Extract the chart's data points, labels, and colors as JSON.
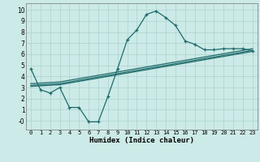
{
  "xlabel": "Humidex (Indice chaleur)",
  "xlim": [
    -0.5,
    23.5
  ],
  "ylim": [
    -0.8,
    10.6
  ],
  "xticks": [
    0,
    1,
    2,
    3,
    4,
    5,
    6,
    7,
    8,
    9,
    10,
    11,
    12,
    13,
    14,
    15,
    16,
    17,
    18,
    19,
    20,
    21,
    22,
    23
  ],
  "yticks": [
    0,
    1,
    2,
    3,
    4,
    5,
    6,
    7,
    8,
    9,
    10
  ],
  "ytick_labels": [
    "-0",
    "1",
    "2",
    "3",
    "4",
    "5",
    "6",
    "7",
    "8",
    "9",
    "10"
  ],
  "background_color": "#cceae7",
  "grid_color": "#aad4d0",
  "line_color": "#1e6b6b",
  "line1_x": [
    0,
    1,
    2,
    3,
    4,
    5,
    6,
    7,
    8,
    9,
    10,
    11,
    12,
    13,
    14,
    15,
    16,
    17,
    18,
    19,
    20,
    21,
    22,
    23
  ],
  "line1_y": [
    4.7,
    2.8,
    2.5,
    3.0,
    1.2,
    1.2,
    -0.1,
    -0.1,
    2.2,
    4.7,
    7.3,
    8.2,
    9.6,
    9.9,
    9.3,
    8.6,
    7.2,
    6.9,
    6.4,
    6.4,
    6.5,
    6.5,
    6.5,
    6.3
  ],
  "line2_x": [
    0,
    2,
    3,
    23
  ],
  "line2_y": [
    3.1,
    3.2,
    3.25,
    6.25
  ],
  "line3_x": [
    0,
    2,
    3,
    23
  ],
  "line3_y": [
    3.2,
    3.3,
    3.35,
    6.35
  ],
  "line4_x": [
    0,
    2,
    3,
    23
  ],
  "line4_y": [
    3.35,
    3.45,
    3.5,
    6.5
  ]
}
